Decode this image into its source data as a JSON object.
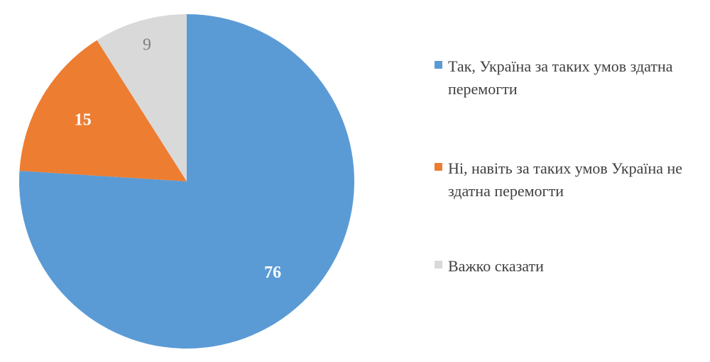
{
  "chart_data": {
    "type": "pie",
    "categories": [
      "Так, Україна за таких умов здатна перемогти",
      "Ні, навіть за таких умов Україна не здатна перемогти",
      "Важко сказати"
    ],
    "values": [
      76,
      15,
      9
    ],
    "data_labels": [
      "76",
      "15",
      "9"
    ],
    "colors": [
      "#5B9BD5",
      "#ED7D31",
      "#D9D9D9"
    ],
    "label_colors": [
      "#FFFFFF",
      "#FFFFFF",
      "#7F7F7F"
    ],
    "legend_position": "right",
    "start": "12 o'clock, clockwise"
  }
}
